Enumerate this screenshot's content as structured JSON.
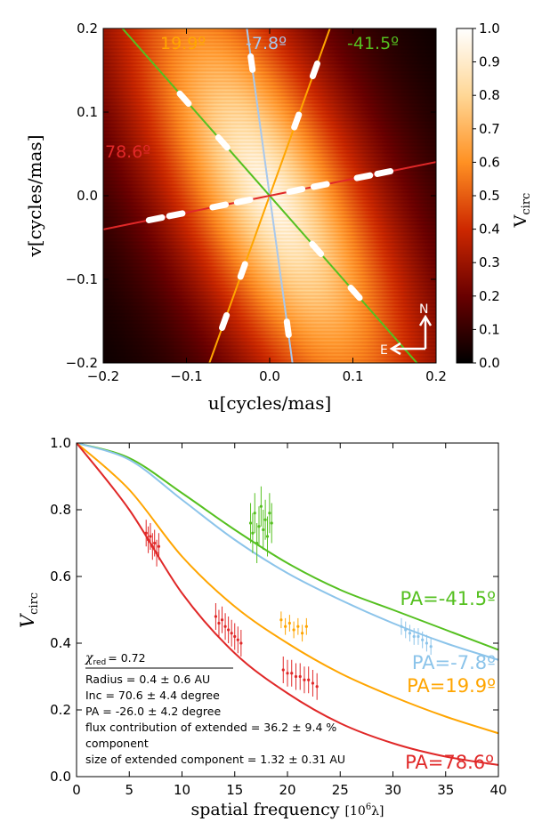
{
  "chart_data": [
    {
      "type": "heatmap",
      "xlabel": "u[cycles/mas]",
      "ylabel": "v[cycles/mas]",
      "xlim": [
        -0.2,
        0.2
      ],
      "ylim": [
        -0.2,
        0.2
      ],
      "xticks": [
        -0.2,
        -0.1,
        0.0,
        0.1,
        0.2
      ],
      "yticks": [
        -0.2,
        -0.1,
        0.0,
        0.1,
        0.2
      ],
      "xtick_labels": [
        "−0.2",
        "−0.1",
        "0.0",
        "0.1",
        "0.2"
      ],
      "ytick_labels": [
        "−0.2",
        "−0.1",
        "0.0",
        "0.1",
        "0.2"
      ],
      "colorbar": {
        "label": "V_circ",
        "range": [
          0.0,
          1.0
        ],
        "ticks": [
          1.0,
          0.9,
          0.8,
          0.7,
          0.6,
          0.5,
          0.4,
          0.3,
          0.2,
          0.1,
          0.0
        ],
        "tick_labels": [
          "1.0",
          "0.9",
          "0.8",
          "0.7",
          "0.6",
          "0.5",
          "0.4",
          "0.3",
          "0.2",
          "0.1",
          "0.0"
        ]
      },
      "model": {
        "major_axis_pa_deg": -26.0,
        "axis_ratio": 0.33
      },
      "baselines": [
        {
          "label": "19.9º",
          "pa_deg": 19.9,
          "color": "#ffa500",
          "samples": [
            0.095,
            0.16
          ]
        },
        {
          "label": "-7.8º",
          "pa_deg": -7.8,
          "color": "#a8c8ec",
          "samples": [
            0.16,
            0.31
          ]
        },
        {
          "label": "-41.5º",
          "pa_deg": -41.5,
          "color": "#55c020",
          "samples": [
            0.085,
            0.155
          ]
        },
        {
          "label": "78.6º",
          "pa_deg": 78.6,
          "color": "#e02828",
          "samples": [
            0.032,
            0.062,
            0.115,
            0.14
          ]
        }
      ],
      "compass": {
        "north": "N",
        "east": "E"
      }
    },
    {
      "type": "line",
      "xlabel": "spatial frequency [10⁶λ]",
      "ylabel": "V_circ",
      "xlim": [
        0,
        40
      ],
      "ylim": [
        0.0,
        1.0
      ],
      "xticks": [
        0,
        5,
        10,
        15,
        20,
        25,
        30,
        35,
        40
      ],
      "xtick_labels": [
        "0",
        "5",
        "10",
        "15",
        "20",
        "25",
        "30",
        "35",
        "40"
      ],
      "yticks": [
        0.0,
        0.2,
        0.4,
        0.6,
        0.8,
        1.0
      ],
      "ytick_labels": [
        "0.0",
        "0.2",
        "0.4",
        "0.6",
        "0.8",
        "1.0"
      ],
      "series": [
        {
          "name": "PA=-41.5º",
          "color": "#55c020",
          "curve": [
            [
              0,
              1.0
            ],
            [
              5,
              0.955
            ],
            [
              10,
              0.85
            ],
            [
              15,
              0.74
            ],
            [
              20,
              0.64
            ],
            [
              25,
              0.56
            ],
            [
              30,
              0.5
            ],
            [
              35,
              0.44
            ],
            [
              40,
              0.38
            ]
          ],
          "points": [
            [
              16.5,
              0.76
            ],
            [
              16.7,
              0.73
            ],
            [
              16.9,
              0.79
            ],
            [
              17.1,
              0.7
            ],
            [
              17.3,
              0.75
            ],
            [
              17.5,
              0.81
            ],
            [
              17.7,
              0.74
            ],
            [
              17.9,
              0.77
            ],
            [
              18.1,
              0.72
            ],
            [
              18.3,
              0.79
            ],
            [
              18.5,
              0.76
            ]
          ],
          "err": 0.06
        },
        {
          "name": "PA=-7.8º",
          "color": "#8cc4ea",
          "curve": [
            [
              0,
              1.0
            ],
            [
              5,
              0.95
            ],
            [
              10,
              0.83
            ],
            [
              15,
              0.71
            ],
            [
              20,
              0.61
            ],
            [
              25,
              0.53
            ],
            [
              30,
              0.46
            ],
            [
              35,
              0.4
            ],
            [
              40,
              0.35
            ]
          ],
          "points": [
            [
              30.8,
              0.45
            ],
            [
              31.2,
              0.44
            ],
            [
              31.6,
              0.43
            ],
            [
              32.0,
              0.42
            ],
            [
              32.4,
              0.42
            ],
            [
              32.8,
              0.41
            ],
            [
              33.2,
              0.4
            ],
            [
              33.6,
              0.39
            ]
          ],
          "err": 0.025
        },
        {
          "name": "PA=19.9º",
          "color": "#ffa500",
          "curve": [
            [
              0,
              1.0
            ],
            [
              5,
              0.86
            ],
            [
              10,
              0.66
            ],
            [
              15,
              0.51
            ],
            [
              20,
              0.4
            ],
            [
              25,
              0.31
            ],
            [
              30,
              0.24
            ],
            [
              35,
              0.18
            ],
            [
              40,
              0.13
            ]
          ],
          "points": [
            [
              19.4,
              0.47
            ],
            [
              19.8,
              0.45
            ],
            [
              20.2,
              0.46
            ],
            [
              20.6,
              0.44
            ],
            [
              21.0,
              0.45
            ],
            [
              21.4,
              0.43
            ],
            [
              21.8,
              0.45
            ]
          ],
          "err": 0.025
        },
        {
          "name": "PA=78.6º",
          "color": "#e02828",
          "curve": [
            [
              0,
              1.0
            ],
            [
              5,
              0.8
            ],
            [
              10,
              0.55
            ],
            [
              15,
              0.37
            ],
            [
              20,
              0.25
            ],
            [
              25,
              0.16
            ],
            [
              30,
              0.1
            ],
            [
              35,
              0.06
            ],
            [
              40,
              0.035
            ]
          ],
          "points": [
            [
              6.6,
              0.73
            ],
            [
              6.8,
              0.71
            ],
            [
              7.0,
              0.72
            ],
            [
              7.2,
              0.69
            ],
            [
              7.4,
              0.7
            ],
            [
              7.6,
              0.67
            ],
            [
              7.8,
              0.69
            ],
            [
              13.2,
              0.48
            ],
            [
              13.5,
              0.46
            ],
            [
              13.8,
              0.47
            ],
            [
              14.1,
              0.45
            ],
            [
              14.4,
              0.44
            ],
            [
              14.7,
              0.43
            ],
            [
              15.0,
              0.42
            ],
            [
              15.3,
              0.41
            ],
            [
              15.6,
              0.4
            ],
            [
              19.6,
              0.32
            ],
            [
              20.0,
              0.31
            ],
            [
              20.4,
              0.31
            ],
            [
              20.8,
              0.3
            ],
            [
              21.2,
              0.3
            ],
            [
              21.6,
              0.29
            ],
            [
              22.0,
              0.29
            ],
            [
              22.4,
              0.28
            ],
            [
              22.8,
              0.27
            ]
          ],
          "err": 0.04
        }
      ],
      "annotation": {
        "chi_label": "χ",
        "chi_sub": "red",
        "chi_value": "=  0.72",
        "lines": [
          "Radius =  0.4  ± 0.6 AU",
          "Inc =  70.6  ± 4.4 degree",
          "PA =  -26.0  ± 4.2 degree",
          "flux contribution of extended =  36.2  ± 9.4 %",
          "component",
          "size of extended component =  1.32  ± 0.31  AU"
        ]
      }
    }
  ]
}
